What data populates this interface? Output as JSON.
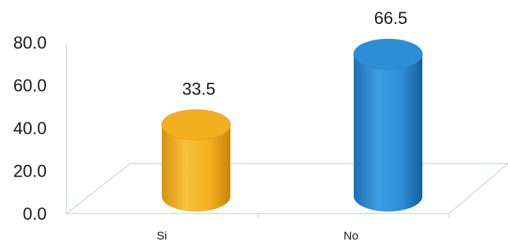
{
  "chart_data": {
    "type": "bar",
    "style": "3d-cylinder",
    "categories": [
      "Si",
      "No"
    ],
    "values": [
      33.5,
      66.5
    ],
    "data_labels": [
      "33.5",
      "66.5"
    ],
    "colors": [
      "#f2b01e",
      "#2c8fd6"
    ],
    "title": "",
    "xlabel": "",
    "ylabel": "",
    "ylim": [
      0,
      80
    ],
    "yticks": [
      "0.0",
      "20.0",
      "40.0",
      "60.0",
      "80.0"
    ],
    "grid": false,
    "legend": "none"
  }
}
